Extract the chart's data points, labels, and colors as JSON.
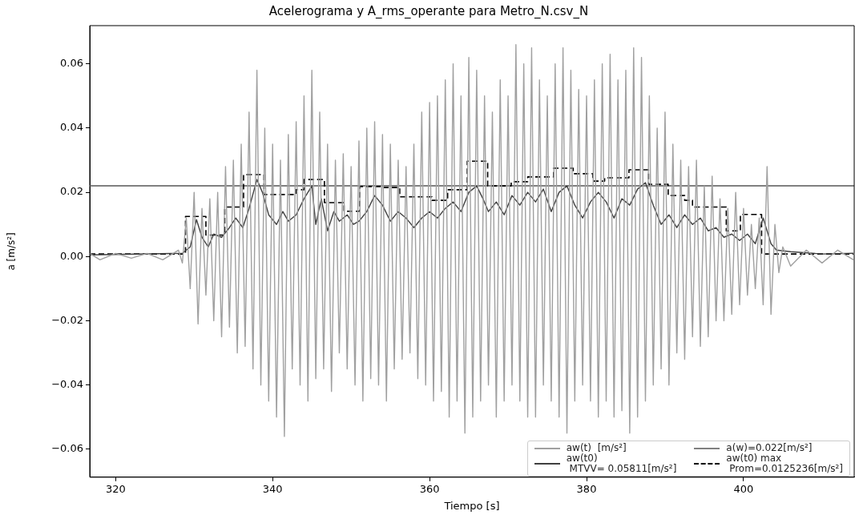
{
  "chart_data": {
    "type": "line",
    "title": "Acelerograma y A_rms_operante para Metro_N.csv_N",
    "xlabel": "Tiempo [s]",
    "ylabel": "a [m/s²]",
    "xlim": [
      316.7,
      414.1
    ],
    "ylim": [
      -0.0687,
      0.0719
    ],
    "xticks": [
      320,
      340,
      360,
      380,
      400
    ],
    "yticks": [
      {
        "value": -0.06,
        "label": "−0.06"
      },
      {
        "value": -0.04,
        "label": "−0.04"
      },
      {
        "value": -0.02,
        "label": "−0.02"
      },
      {
        "value": 0,
        "label": "0.00"
      },
      {
        "value": 0.02,
        "label": "0.02"
      },
      {
        "value": 0.04,
        "label": "0.04"
      },
      {
        "value": 0.06,
        "label": "0.06"
      }
    ],
    "grid": false,
    "legend": "bottom right",
    "line_style": "solid",
    "marker": "none",
    "ref_lines": [
      {
        "axis": "y",
        "value": 0.022,
        "label": "a(w)=0.022[m/s²]",
        "color": "#808080"
      }
    ],
    "series": [
      {
        "name": "aw(t)  [m/s²]",
        "type": "line",
        "color": "#a0a0a0",
        "x": [
          316.7,
          318,
          320,
          322,
          324,
          326,
          328,
          328.5,
          329,
          329.5,
          330,
          330.5,
          331,
          331.5,
          332,
          332.5,
          333,
          333.5,
          334,
          334.5,
          335,
          335.5,
          336,
          336.5,
          337,
          337.5,
          338,
          338.5,
          339,
          339.5,
          340,
          340.5,
          341,
          341.5,
          342,
          342.5,
          343,
          343.5,
          344,
          344.5,
          345,
          345.5,
          346,
          346.5,
          347,
          347.5,
          348,
          348.5,
          349,
          349.5,
          350,
          350.5,
          351,
          351.5,
          352,
          352.5,
          353,
          353.5,
          354,
          354.5,
          355,
          355.5,
          356,
          356.5,
          357,
          357.5,
          358,
          358.5,
          359,
          359.5,
          360,
          360.5,
          361,
          361.5,
          362,
          362.5,
          363,
          363.5,
          364,
          364.5,
          365,
          365.5,
          366,
          366.5,
          367,
          367.5,
          368,
          368.5,
          369,
          369.5,
          370,
          370.5,
          371,
          371.5,
          372,
          372.5,
          373,
          373.5,
          374,
          374.5,
          375,
          375.5,
          376,
          376.5,
          377,
          377.5,
          378,
          378.5,
          379,
          379.5,
          380,
          380.5,
          381,
          381.5,
          382,
          382.5,
          383,
          383.5,
          384,
          384.5,
          385,
          385.5,
          386,
          386.5,
          387,
          387.5,
          388,
          388.5,
          389,
          389.5,
          390,
          390.5,
          391,
          391.5,
          392,
          392.5,
          393,
          393.5,
          394,
          394.5,
          395,
          395.5,
          396,
          396.5,
          397,
          397.5,
          398,
          398.5,
          399,
          399.5,
          400,
          400.5,
          401,
          401.5,
          402,
          402.5,
          403,
          403.5,
          404,
          404.5,
          405,
          406,
          408,
          410,
          412,
          414
        ],
        "values": [
          0.001,
          -0.001,
          0.001,
          -0.0005,
          0.001,
          -0.001,
          0.002,
          -0.002,
          0.012,
          -0.01,
          0.02,
          -0.021,
          0.015,
          -0.012,
          0.018,
          -0.02,
          0.02,
          -0.025,
          0.028,
          -0.022,
          0.03,
          -0.03,
          0.035,
          -0.028,
          0.045,
          -0.035,
          0.058,
          -0.04,
          0.04,
          -0.045,
          0.035,
          -0.05,
          0.03,
          -0.056,
          0.038,
          -0.035,
          0.042,
          -0.04,
          0.05,
          -0.045,
          0.058,
          -0.038,
          0.045,
          -0.035,
          0.035,
          -0.042,
          0.03,
          -0.03,
          0.032,
          -0.035,
          0.028,
          -0.04,
          0.036,
          -0.045,
          0.04,
          -0.038,
          0.042,
          -0.04,
          0.038,
          -0.045,
          0.035,
          -0.035,
          0.03,
          -0.032,
          0.028,
          -0.03,
          0.035,
          -0.038,
          0.045,
          -0.04,
          0.048,
          -0.045,
          0.05,
          -0.042,
          0.055,
          -0.05,
          0.06,
          -0.045,
          0.05,
          -0.055,
          0.062,
          -0.05,
          0.058,
          -0.045,
          0.05,
          -0.04,
          0.045,
          -0.05,
          0.055,
          -0.045,
          0.05,
          -0.04,
          0.066,
          -0.045,
          0.06,
          -0.05,
          0.065,
          -0.05,
          0.055,
          -0.04,
          0.05,
          -0.045,
          0.06,
          -0.05,
          0.065,
          -0.055,
          0.058,
          -0.045,
          0.052,
          -0.04,
          0.05,
          -0.045,
          0.055,
          -0.05,
          0.06,
          -0.045,
          0.063,
          -0.05,
          0.055,
          -0.048,
          0.058,
          -0.055,
          0.065,
          -0.05,
          0.062,
          -0.045,
          0.05,
          -0.04,
          0.04,
          -0.035,
          0.045,
          -0.04,
          0.035,
          -0.03,
          0.03,
          -0.032,
          0.028,
          -0.025,
          0.03,
          -0.028,
          0.022,
          -0.025,
          0.025,
          -0.02,
          0.018,
          -0.02,
          0.015,
          -0.018,
          0.02,
          -0.015,
          0.015,
          -0.012,
          0.01,
          -0.01,
          0.012,
          -0.015,
          0.028,
          -0.018,
          0.01,
          -0.005,
          0.003,
          -0.003,
          0.002,
          -0.002,
          0.002,
          -0.001
        ]
      },
      {
        "name": "aw(t0)\n MTVV= 0.05811[m/s²]",
        "type": "line",
        "color": "#404040",
        "x": [
          316.7,
          328.5,
          329.5,
          330.3,
          331,
          331.8,
          332.5,
          333.5,
          334.5,
          335.3,
          336.2,
          337,
          338,
          338.7,
          339.5,
          340.5,
          341.3,
          342,
          343,
          344,
          345,
          345.5,
          346.2,
          347,
          347.8,
          348.5,
          349.5,
          350.3,
          351,
          352,
          353,
          354,
          355,
          356,
          357,
          358,
          359,
          360,
          361,
          362,
          363,
          364,
          365,
          366,
          366.8,
          367.5,
          368.5,
          369.5,
          370.5,
          371.5,
          372.5,
          373.5,
          374.5,
          375.5,
          376.5,
          377.5,
          378.5,
          379.5,
          380.5,
          381.5,
          382.5,
          383.5,
          384.5,
          385.5,
          386.5,
          387.5,
          388.5,
          389.5,
          390.5,
          391.5,
          392.5,
          393.5,
          394.5,
          395.5,
          396.5,
          397.5,
          398.5,
          399.5,
          400.5,
          401.5,
          402.5,
          403.5,
          404.2,
          406,
          410,
          414
        ],
        "values": [
          0.0005,
          0.001,
          0.003,
          0.0115,
          0.006,
          0.003,
          0.007,
          0.006,
          0.009,
          0.012,
          0.009,
          0.015,
          0.024,
          0.02,
          0.013,
          0.01,
          0.014,
          0.011,
          0.013,
          0.018,
          0.022,
          0.01,
          0.018,
          0.008,
          0.014,
          0.011,
          0.013,
          0.01,
          0.011,
          0.014,
          0.019,
          0.016,
          0.011,
          0.014,
          0.012,
          0.009,
          0.012,
          0.014,
          0.012,
          0.015,
          0.017,
          0.014,
          0.02,
          0.022,
          0.018,
          0.014,
          0.017,
          0.013,
          0.019,
          0.016,
          0.02,
          0.017,
          0.021,
          0.014,
          0.02,
          0.022,
          0.016,
          0.012,
          0.017,
          0.02,
          0.017,
          0.012,
          0.018,
          0.016,
          0.021,
          0.023,
          0.016,
          0.01,
          0.013,
          0.009,
          0.013,
          0.01,
          0.012,
          0.008,
          0.009,
          0.006,
          0.007,
          0.005,
          0.007,
          0.004,
          0.012,
          0.004,
          0.002,
          0.0015,
          0.0008,
          0.001
        ]
      },
      {
        "name": "aw(t0) max\n Prom=0.0125236[m/s²]",
        "type": "step",
        "color": "#000000",
        "line_style": "dashed",
        "x": [
          316.7,
          328.9,
          331.5,
          333.9,
          336.3,
          338.9,
          343,
          344,
          346.6,
          349.1,
          351.1,
          354.1,
          356.2,
          360.3,
          362.3,
          364.8,
          367.4,
          370.4,
          372.5,
          375.8,
          378.3,
          380.8,
          382.3,
          385.4,
          387.9,
          390.4,
          392.5,
          393.5,
          397.8,
          399.6,
          402.3,
          414
        ],
        "values": [
          0.0008,
          0.0125,
          0.0067,
          0.0154,
          0.0255,
          0.0193,
          0.0208,
          0.024,
          0.0168,
          0.0141,
          0.0218,
          0.0215,
          0.0186,
          0.0175,
          0.0208,
          0.0297,
          0.022,
          0.0233,
          0.0248,
          0.0275,
          0.0258,
          0.0235,
          0.0245,
          0.027,
          0.0225,
          0.019,
          0.0175,
          0.0154,
          0.008,
          0.0131,
          0.0008,
          0.0008
        ]
      }
    ]
  }
}
